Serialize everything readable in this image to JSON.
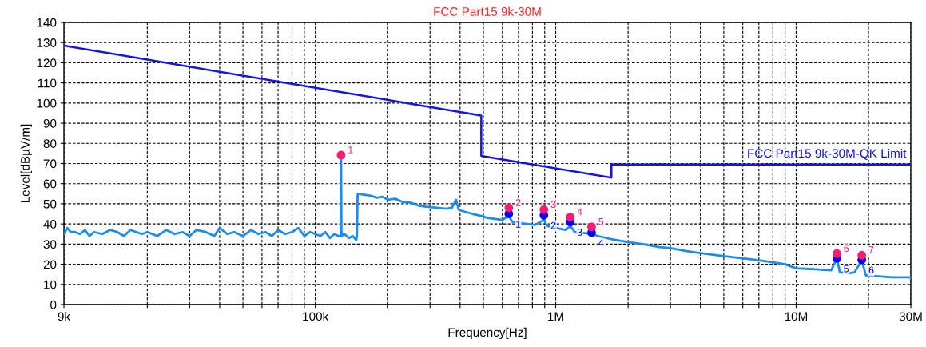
{
  "chart_data": {
    "type": "line",
    "title": "FCC Part15 9k-30M",
    "xlabel": "Frequency[Hz]",
    "ylabel": "Level[dBµV/m]",
    "log": "x",
    "grid": true,
    "legend": false,
    "marker": "none",
    "line_style": "solid",
    "xlim": [
      9000,
      30000000
    ],
    "xticks": [
      {
        "value": 9000,
        "label": "9k"
      },
      {
        "value": 20000,
        "label": null
      },
      {
        "value": 30000,
        "label": null
      },
      {
        "value": 40000,
        "label": null
      },
      {
        "value": 50000,
        "label": null
      },
      {
        "value": 60000,
        "label": null
      },
      {
        "value": 70000,
        "label": null
      },
      {
        "value": 80000,
        "label": null
      },
      {
        "value": 90000,
        "label": null
      },
      {
        "value": 100000,
        "label": "100k"
      },
      {
        "value": 200000,
        "label": null
      },
      {
        "value": 300000,
        "label": null
      },
      {
        "value": 400000,
        "label": null
      },
      {
        "value": 500000,
        "label": null
      },
      {
        "value": 600000,
        "label": null
      },
      {
        "value": 700000,
        "label": null
      },
      {
        "value": 800000,
        "label": null
      },
      {
        "value": 900000,
        "label": null
      },
      {
        "value": 1000000,
        "label": "1M"
      },
      {
        "value": 2000000,
        "label": null
      },
      {
        "value": 3000000,
        "label": null
      },
      {
        "value": 4000000,
        "label": null
      },
      {
        "value": 5000000,
        "label": null
      },
      {
        "value": 6000000,
        "label": null
      },
      {
        "value": 7000000,
        "label": null
      },
      {
        "value": 8000000,
        "label": null
      },
      {
        "value": 9000000,
        "label": null
      },
      {
        "value": 10000000,
        "label": "10M"
      },
      {
        "value": 20000000,
        "label": null
      },
      {
        "value": 30000000,
        "label": "30M"
      }
    ],
    "ylim": [
      0,
      140
    ],
    "yticks": [
      0,
      10,
      20,
      30,
      40,
      50,
      60,
      70,
      80,
      90,
      100,
      110,
      120,
      130,
      140
    ],
    "series": [
      {
        "color": "#1a8cf0",
        "x": [
          9000,
          9300,
          9600,
          10000,
          10500,
          11000,
          11500,
          12000,
          13000,
          14000,
          15000,
          16000,
          17000,
          18000,
          19000,
          20000,
          22000,
          24000,
          26000,
          28000,
          30000,
          32000,
          35000,
          38000,
          40000,
          43000,
          46000,
          50000,
          54000,
          58000,
          62000,
          66000,
          70000,
          75000,
          80000,
          85000,
          90000,
          95000,
          100000,
          105000,
          110000,
          115000,
          120000,
          125000,
          127500,
          128000,
          128500,
          132000,
          138000,
          143000,
          148000,
          149000,
          150000,
          160000,
          170000,
          180000,
          190000,
          200000,
          215000,
          230000,
          250000,
          270000,
          290000,
          320000,
          350000,
          370000,
          385000,
          395000,
          420000,
          450000,
          490000,
          520000,
          560000,
          600000,
          638000,
          660000,
          700000,
          760000,
          820000,
          893000,
          920000,
          1000000,
          1100000,
          1149000,
          1200000,
          1300000,
          1410000,
          1500000,
          1700000,
          2000000,
          2300000,
          2700000,
          3000000,
          3500000,
          4000000,
          5000000,
          6000000,
          7000000,
          8000000,
          9000000,
          10000000,
          12000000,
          14000000,
          14770000,
          15200000,
          16500000,
          17500000,
          18760000,
          19500000,
          22000000,
          25000000,
          30000000
        ],
        "values": [
          35,
          38,
          36,
          36,
          35,
          37,
          34,
          36,
          35,
          37,
          36,
          34,
          37,
          36,
          35,
          36,
          34,
          37,
          35,
          36,
          34,
          37,
          36,
          34,
          38,
          35,
          36,
          34,
          37,
          35,
          36,
          34,
          37,
          35,
          36,
          38,
          34,
          36,
          35,
          34,
          36,
          33,
          35,
          34,
          34,
          74,
          34,
          35,
          33,
          34,
          32,
          34,
          55,
          54.5,
          54,
          53,
          53.5,
          52,
          52.5,
          51,
          50.5,
          49,
          48.5,
          48,
          47.5,
          48,
          52,
          47,
          46,
          45,
          44,
          43,
          42.5,
          42,
          44,
          41,
          40.5,
          40,
          39.5,
          42,
          39,
          38,
          37,
          39,
          36,
          35.5,
          35,
          34,
          32.5,
          31,
          30,
          28.5,
          28,
          26.5,
          25.5,
          24,
          23,
          22,
          21,
          20,
          18,
          17.5,
          17,
          23,
          16,
          15.5,
          16,
          22,
          14.5,
          14,
          13.5,
          13.5
        ]
      },
      {
        "name": "FCC Part15 9k-30M-QK Limit",
        "color": "#1414e6",
        "x": [
          9000,
          490000,
          490000,
          1705000,
          1705000,
          30000000
        ],
        "values": [
          128.5,
          93.8,
          73.8,
          63.0,
          69.5,
          69.5
        ]
      },
      {
        "type": "scatter",
        "marker": "circle",
        "color": "#0000ff",
        "x": [
          638000,
          893000,
          1149000,
          1410000,
          14770000,
          18760000
        ],
        "values": [
          45.0,
          44.3,
          41.0,
          35.7,
          22.9,
          22.2
        ]
      },
      {
        "type": "scatter",
        "marker": "circle",
        "color": "#ff1a75",
        "x": [
          128000,
          638000,
          893000,
          1149000,
          1410000,
          14770000,
          18760000
        ],
        "values": [
          74.2,
          48.0,
          47.1,
          43.4,
          38.5,
          25.3,
          24.5
        ]
      }
    ],
    "annotations": [
      {
        "text": "1",
        "x": 638000,
        "y": 45.0
      },
      {
        "text": "2",
        "x": 893000,
        "y": 44.3
      },
      {
        "text": "3",
        "x": 1149000,
        "y": 41.0
      },
      {
        "text": "4",
        "x": 1410000,
        "y": 35.7
      },
      {
        "text": "5",
        "x": 14770000,
        "y": 22.9
      },
      {
        "text": "6",
        "x": 18760000,
        "y": 22.2
      },
      {
        "text": "1",
        "x": 128000,
        "y": 74.2
      },
      {
        "text": "2",
        "x": 638000,
        "y": 48.0
      },
      {
        "text": "3",
        "x": 893000,
        "y": 47.1
      },
      {
        "text": "4",
        "x": 1149000,
        "y": 43.4
      },
      {
        "text": "5",
        "x": 1410000,
        "y": 38.5
      },
      {
        "text": "6",
        "x": 14770000,
        "y": 25.3
      },
      {
        "text": "7",
        "x": 18760000,
        "y": 24.5
      }
    ]
  }
}
